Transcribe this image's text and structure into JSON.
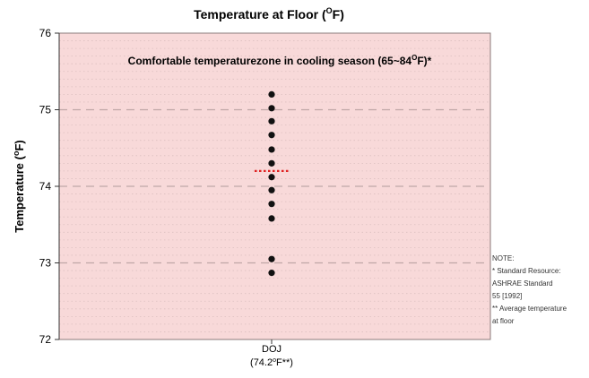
{
  "chart_data": {
    "type": "scatter",
    "title": "Temperature at Floor (°F)",
    "title_parts": [
      "Temperature at Floor (",
      "O",
      "F)"
    ],
    "ylabel": "Temperature (°F)",
    "ylabel_parts": [
      "Temperature (",
      "o",
      "F)"
    ],
    "ylim": [
      72,
      76
    ],
    "yticks": [
      "72",
      "73",
      "74",
      "75",
      "76"
    ],
    "categories": [
      "DOJ"
    ],
    "category_sub_parts": [
      "(74.2",
      "o",
      "F**)"
    ],
    "points": [
      {
        "x": "DOJ",
        "y": 75.2
      },
      {
        "x": "DOJ",
        "y": 75.02
      },
      {
        "x": "DOJ",
        "y": 74.85
      },
      {
        "x": "DOJ",
        "y": 74.67
      },
      {
        "x": "DOJ",
        "y": 74.48
      },
      {
        "x": "DOJ",
        "y": 74.3
      },
      {
        "x": "DOJ",
        "y": 74.12
      },
      {
        "x": "DOJ",
        "y": 73.95
      },
      {
        "x": "DOJ",
        "y": 73.77
      },
      {
        "x": "DOJ",
        "y": 73.58
      },
      {
        "x": "DOJ",
        "y": 73.05
      },
      {
        "x": "DOJ",
        "y": 72.87
      }
    ],
    "average": {
      "x": "DOJ",
      "y": 74.2
    },
    "comfort_zone_text_parts": [
      "Comfortable temperaturezone in cooling season (65~84",
      "O",
      "F)*"
    ],
    "grid": {
      "major_dashed": true,
      "minor_dotted": true
    },
    "colors": {
      "plot_background": "#f8d9d9",
      "points": "#111111",
      "average_marker": "#e02020",
      "major_grid": "#bfa7a7",
      "minor_grid": "#dcc0c0"
    }
  },
  "note": {
    "lines": [
      "NOTE:",
      "* Standard Resource:",
      "ASHRAE Standard",
      "55 [1992]",
      "** Average temperature",
      "at floor"
    ]
  }
}
